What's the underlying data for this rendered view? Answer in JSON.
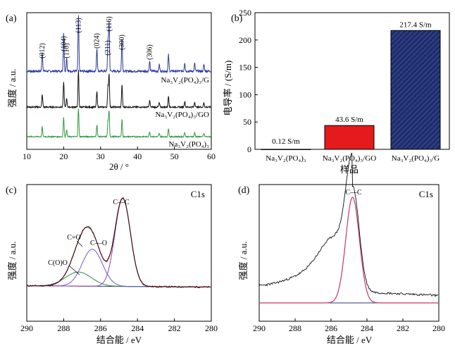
{
  "chart_data": [
    {
      "panel": "(a)",
      "type": "line",
      "xlabel": "2θ / °",
      "ylabel": "强度 / a.u.",
      "xlim": [
        10,
        60
      ],
      "xticks": [
        "10",
        "20",
        "30",
        "40",
        "50",
        "60"
      ],
      "peak_positions": [
        14.2,
        20.0,
        20.8,
        24.0,
        29.0,
        32.0,
        32.3,
        35.8,
        43.3,
        45.9,
        48.4,
        52.8,
        55.5,
        58.0
      ],
      "peak_labels": [
        {
          "x": 14.2,
          "text": "(012)"
        },
        {
          "x": 20.0,
          "text": "(104)"
        },
        {
          "x": 20.8,
          "text": "(110)"
        },
        {
          "x": 24.0,
          "text": "(113)"
        },
        {
          "x": 29.0,
          "text": "(024)"
        },
        {
          "x": 31.9,
          "text": "(211)"
        },
        {
          "x": 32.3,
          "text": "(116)"
        },
        {
          "x": 35.8,
          "text": "(300)"
        },
        {
          "x": 43.3,
          "text": "(306)"
        }
      ],
      "series": [
        {
          "name": "Na3V2(PO4)3/G",
          "color": "#2b3a9c"
        },
        {
          "name": "Na3V2(PO4)3/GO",
          "color": "#111111"
        },
        {
          "name": "Na3V2(PO4)3",
          "color": "#2e9a3e"
        }
      ]
    },
    {
      "panel": "(b)",
      "type": "bar",
      "xlabel": "样品",
      "ylabel": "电导率 / (S/m)",
      "ylim": [
        0,
        250
      ],
      "yticks": [
        "0",
        "50",
        "100",
        "150",
        "200",
        "250"
      ],
      "categories": [
        "Na3V2(PO4)3",
        "Na3V2(PO4)3/GO",
        "Na3V2(PO4)3/G"
      ],
      "values": [
        0.12,
        43.6,
        217.4
      ],
      "value_labels": [
        "0.12 S/m",
        "43.6 S/m",
        "217.4 S/m"
      ],
      "colors": [
        "#ffffff",
        "#e41a1c",
        "#1f2d6b"
      ]
    },
    {
      "panel": "(c)",
      "type": "line",
      "title": "C1s",
      "xlabel": "结合能 / eV",
      "ylabel": "强度 / a.u.",
      "xlim": [
        290,
        280
      ],
      "xticks": [
        "290",
        "288",
        "286",
        "284",
        "282",
        "280"
      ],
      "components": [
        {
          "label": "C—C",
          "center": 284.8,
          "height": 1.0,
          "color": "#8e44ad"
        },
        {
          "label": "C—O",
          "center": 286.4,
          "height": 0.42,
          "color": "#6a5acd"
        },
        {
          "label": "C=O",
          "center": 287.2,
          "height": 0.3,
          "color": "#cc3344"
        },
        {
          "label": "C(O)O",
          "center": 287.0,
          "height": 0.18,
          "color": "#2e8b3e"
        }
      ]
    },
    {
      "panel": "(d)",
      "type": "line",
      "title": "C1s",
      "xlabel": "结合能 / eV",
      "ylabel": "强度 / a.u.",
      "xlim": [
        290,
        280
      ],
      "xticks": [
        "290",
        "288",
        "286",
        "284",
        "282",
        "280"
      ],
      "components": [
        {
          "label": "C—C",
          "center": 284.8,
          "height": 1.0,
          "color": "#cc3366"
        }
      ]
    }
  ],
  "labels": {
    "a": {
      "panel": "(a)",
      "ylabel": "强度 / a.u.",
      "xlabel": "2θ / °",
      "s1": "Na₃V₂(PO₄)₃/G",
      "s2": "Na₃V₂(PO₄)₃/GO",
      "s3": "Na₃V₂(PO₄)₃"
    },
    "b": {
      "panel": "(b)",
      "ylabel": "电导率 / (S/m)",
      "xlabel": "样品",
      "c1": "Na₃V₂(PO₄)₃",
      "c2": "Na₃V₂(PO₄)₃/GO",
      "c3": "Na₃V₂(PO₄)₃/G",
      "v1": "0.12 S/m",
      "v2": "43.6 S/m",
      "v3": "217.4 S/m"
    },
    "c": {
      "panel": "(c)",
      "title": "C1s",
      "ylabel": "强度 / a.u.",
      "xlabel": "结合能 / eV",
      "cc": "C—C",
      "co": "C—O",
      "c_o": "C=O",
      "coo": "C(O)O"
    },
    "d": {
      "panel": "(d)",
      "title": "C1s",
      "ylabel": "强度 / a.u.",
      "xlabel": "结合能 / eV",
      "cc": "C—C"
    }
  }
}
